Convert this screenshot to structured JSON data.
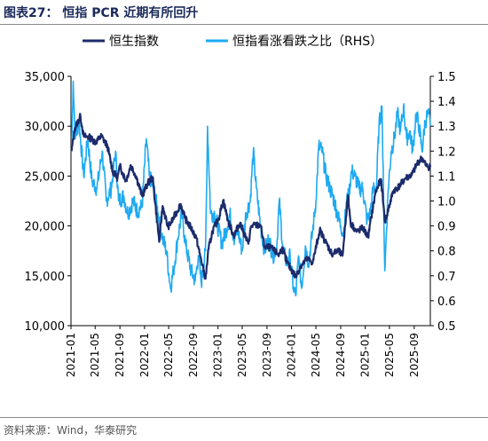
{
  "figure": {
    "title": "图表27： 恒指 PCR 近期有所回升",
    "source": "资料来源：Wind，华泰研究"
  },
  "chart_data": {
    "type": "line",
    "legend": [
      "恒生指数",
      "恒指看涨看跌之比（RHS）"
    ],
    "legend_placement": "top",
    "grid": false,
    "x_ticks": [
      "2021-01",
      "2021-05",
      "2021-09",
      "2022-01",
      "2022-05",
      "2022-09",
      "2023-01",
      "2023-05",
      "2023-09",
      "2024-01",
      "2024-05",
      "2024-09",
      "2025-01",
      "2025-05",
      "2025-09"
    ],
    "y_left": {
      "ylim": [
        10000,
        35000
      ],
      "ticks": [
        "10,000",
        "15,000",
        "20,000",
        "25,000",
        "30,000",
        "35,000"
      ]
    },
    "y_right": {
      "ylim": [
        0.5,
        1.5
      ],
      "ticks": [
        "0.5",
        "0.6",
        "0.7",
        "0.8",
        "0.9",
        "1.0",
        "1.1",
        "1.2",
        "1.3",
        "1.4",
        "1.5"
      ]
    },
    "x_range": [
      "2021-01-01",
      "2025-11-20"
    ],
    "colors": {
      "hsi": "#1c2b6b",
      "pcr": "#1eaaf1"
    },
    "series": [
      {
        "name": "恒生指数",
        "axis": "left",
        "points": [
          [
            "2021-01-04",
            27500
          ],
          [
            "2021-01-20",
            29800
          ],
          [
            "2021-02-17",
            31000
          ],
          [
            "2021-03-05",
            29000
          ],
          [
            "2021-04-01",
            28900
          ],
          [
            "2021-05-03",
            28400
          ],
          [
            "2021-06-01",
            29000
          ],
          [
            "2021-07-01",
            28000
          ],
          [
            "2021-07-27",
            25500
          ],
          [
            "2021-08-20",
            24800
          ],
          [
            "2021-09-01",
            26000
          ],
          [
            "2021-10-01",
            24500
          ],
          [
            "2021-10-25",
            26100
          ],
          [
            "2021-11-20",
            25000
          ],
          [
            "2021-12-20",
            23000
          ],
          [
            "2022-01-15",
            24200
          ],
          [
            "2022-02-10",
            24900
          ],
          [
            "2022-03-15",
            18400
          ],
          [
            "2022-04-01",
            22000
          ],
          [
            "2022-04-27",
            19900
          ],
          [
            "2022-05-15",
            20400
          ],
          [
            "2022-06-30",
            22200
          ],
          [
            "2022-07-20",
            20800
          ],
          [
            "2022-08-20",
            19800
          ],
          [
            "2022-09-15",
            18800
          ],
          [
            "2022-10-01",
            17300
          ],
          [
            "2022-10-31",
            14700
          ],
          [
            "2022-11-15",
            17700
          ],
          [
            "2022-12-05",
            19500
          ],
          [
            "2023-01-05",
            20800
          ],
          [
            "2023-01-27",
            22600
          ],
          [
            "2023-02-20",
            20500
          ],
          [
            "2023-03-20",
            19000
          ],
          [
            "2023-04-20",
            20300
          ],
          [
            "2023-05-31",
            18200
          ],
          [
            "2023-06-15",
            20000
          ],
          [
            "2023-07-31",
            20100
          ],
          [
            "2023-08-20",
            17900
          ],
          [
            "2023-09-20",
            17800
          ],
          [
            "2023-10-31",
            17100
          ],
          [
            "2023-11-15",
            17800
          ],
          [
            "2023-12-10",
            16300
          ],
          [
            "2024-01-22",
            14900
          ],
          [
            "2024-02-15",
            16000
          ],
          [
            "2024-03-20",
            16700
          ],
          [
            "2024-04-15",
            16300
          ],
          [
            "2024-05-20",
            19600
          ],
          [
            "2024-06-20",
            18300
          ],
          [
            "2024-07-20",
            17200
          ],
          [
            "2024-08-20",
            17500
          ],
          [
            "2024-09-10",
            17000
          ],
          [
            "2024-10-07",
            23100
          ],
          [
            "2024-10-20",
            20300
          ],
          [
            "2024-11-20",
            19400
          ],
          [
            "2024-12-20",
            19800
          ],
          [
            "2025-01-15",
            18900
          ],
          [
            "2025-02-20",
            23300
          ],
          [
            "2025-03-20",
            24700
          ],
          [
            "2025-04-09",
            20400
          ],
          [
            "2025-05-20",
            23500
          ],
          [
            "2025-06-20",
            24000
          ],
          [
            "2025-07-20",
            24800
          ],
          [
            "2025-08-20",
            25100
          ],
          [
            "2025-09-20",
            26400
          ],
          [
            "2025-10-10",
            26800
          ],
          [
            "2025-10-31",
            26000
          ],
          [
            "2025-11-20",
            25900
          ]
        ]
      },
      {
        "name": "恒指看涨看跌之比（RHS）",
        "axis": "right",
        "points": [
          [
            "2021-01-04",
            1.2
          ],
          [
            "2021-01-12",
            1.48
          ],
          [
            "2021-01-22",
            1.25
          ],
          [
            "2021-02-10",
            1.32
          ],
          [
            "2021-03-05",
            1.1
          ],
          [
            "2021-03-25",
            1.25
          ],
          [
            "2021-04-15",
            1.08
          ],
          [
            "2021-05-10",
            1.05
          ],
          [
            "2021-06-05",
            1.2
          ],
          [
            "2021-06-25",
            1.0
          ],
          [
            "2021-07-20",
            1.05
          ],
          [
            "2021-08-10",
            1.2
          ],
          [
            "2021-08-25",
            1.0
          ],
          [
            "2021-09-20",
            1.02
          ],
          [
            "2021-10-10",
            0.95
          ],
          [
            "2021-11-05",
            1.0
          ],
          [
            "2021-11-25",
            0.96
          ],
          [
            "2021-12-20",
            0.98
          ],
          [
            "2022-01-10",
            1.25
          ],
          [
            "2022-01-25",
            1.1
          ],
          [
            "2022-02-15",
            1.05
          ],
          [
            "2022-03-10",
            0.95
          ],
          [
            "2022-04-01",
            0.85
          ],
          [
            "2022-04-20",
            0.8
          ],
          [
            "2022-05-10",
            0.65
          ],
          [
            "2022-05-25",
            0.72
          ],
          [
            "2022-06-15",
            0.85
          ],
          [
            "2022-07-05",
            0.95
          ],
          [
            "2022-07-25",
            0.82
          ],
          [
            "2022-08-20",
            0.72
          ],
          [
            "2022-09-10",
            0.68
          ],
          [
            "2022-09-25",
            0.78
          ],
          [
            "2022-10-10",
            0.67
          ],
          [
            "2022-10-31",
            0.8
          ],
          [
            "2022-11-10",
            1.3
          ],
          [
            "2022-11-25",
            0.95
          ],
          [
            "2022-12-15",
            0.95
          ],
          [
            "2023-01-05",
            0.88
          ],
          [
            "2023-01-20",
            0.83
          ],
          [
            "2023-02-10",
            0.88
          ],
          [
            "2023-03-01",
            0.95
          ],
          [
            "2023-03-20",
            0.85
          ],
          [
            "2023-04-10",
            0.88
          ],
          [
            "2023-05-01",
            0.8
          ],
          [
            "2023-05-20",
            0.95
          ],
          [
            "2023-06-10",
            1.0
          ],
          [
            "2023-06-25",
            1.2
          ],
          [
            "2023-07-10",
            1.05
          ],
          [
            "2023-07-31",
            0.9
          ],
          [
            "2023-08-20",
            0.8
          ],
          [
            "2023-09-10",
            0.85
          ],
          [
            "2023-10-01",
            0.78
          ],
          [
            "2023-10-20",
            0.82
          ],
          [
            "2023-11-01",
            1.0
          ],
          [
            "2023-11-20",
            0.8
          ],
          [
            "2023-12-10",
            0.75
          ],
          [
            "2023-12-25",
            0.78
          ],
          [
            "2024-01-10",
            0.65
          ],
          [
            "2024-01-22",
            0.62
          ],
          [
            "2024-02-05",
            0.78
          ],
          [
            "2024-02-20",
            0.65
          ],
          [
            "2024-03-10",
            0.82
          ],
          [
            "2024-03-25",
            0.75
          ],
          [
            "2024-04-15",
            0.88
          ],
          [
            "2024-05-01",
            1.0
          ],
          [
            "2024-05-15",
            1.22
          ],
          [
            "2024-06-01",
            1.2
          ],
          [
            "2024-06-20",
            1.1
          ],
          [
            "2024-07-10",
            1.05
          ],
          [
            "2024-07-31",
            1.0
          ],
          [
            "2024-08-15",
            0.95
          ],
          [
            "2024-09-01",
            0.9
          ],
          [
            "2024-09-15",
            0.87
          ],
          [
            "2024-10-01",
            1.0
          ],
          [
            "2024-10-10",
            1.02
          ],
          [
            "2024-10-25",
            1.12
          ],
          [
            "2024-11-10",
            1.1
          ],
          [
            "2024-12-01",
            1.05
          ],
          [
            "2024-12-20",
            1.05
          ],
          [
            "2025-01-10",
            0.92
          ],
          [
            "2025-01-25",
            0.95
          ],
          [
            "2025-02-10",
            1.05
          ],
          [
            "2025-02-25",
            1.05
          ],
          [
            "2025-03-10",
            1.3
          ],
          [
            "2025-03-25",
            1.38
          ],
          [
            "2025-04-08",
            0.72
          ],
          [
            "2025-04-25",
            1.05
          ],
          [
            "2025-05-10",
            1.2
          ],
          [
            "2025-05-25",
            1.25
          ],
          [
            "2025-06-10",
            1.35
          ],
          [
            "2025-06-25",
            1.28
          ],
          [
            "2025-07-10",
            1.38
          ],
          [
            "2025-07-25",
            1.25
          ],
          [
            "2025-08-10",
            1.28
          ],
          [
            "2025-08-25",
            1.2
          ],
          [
            "2025-09-10",
            1.35
          ],
          [
            "2025-09-25",
            1.3
          ],
          [
            "2025-10-10",
            1.2
          ],
          [
            "2025-10-25",
            1.32
          ],
          [
            "2025-11-10",
            1.35
          ],
          [
            "2025-11-20",
            1.3
          ]
        ]
      }
    ]
  }
}
